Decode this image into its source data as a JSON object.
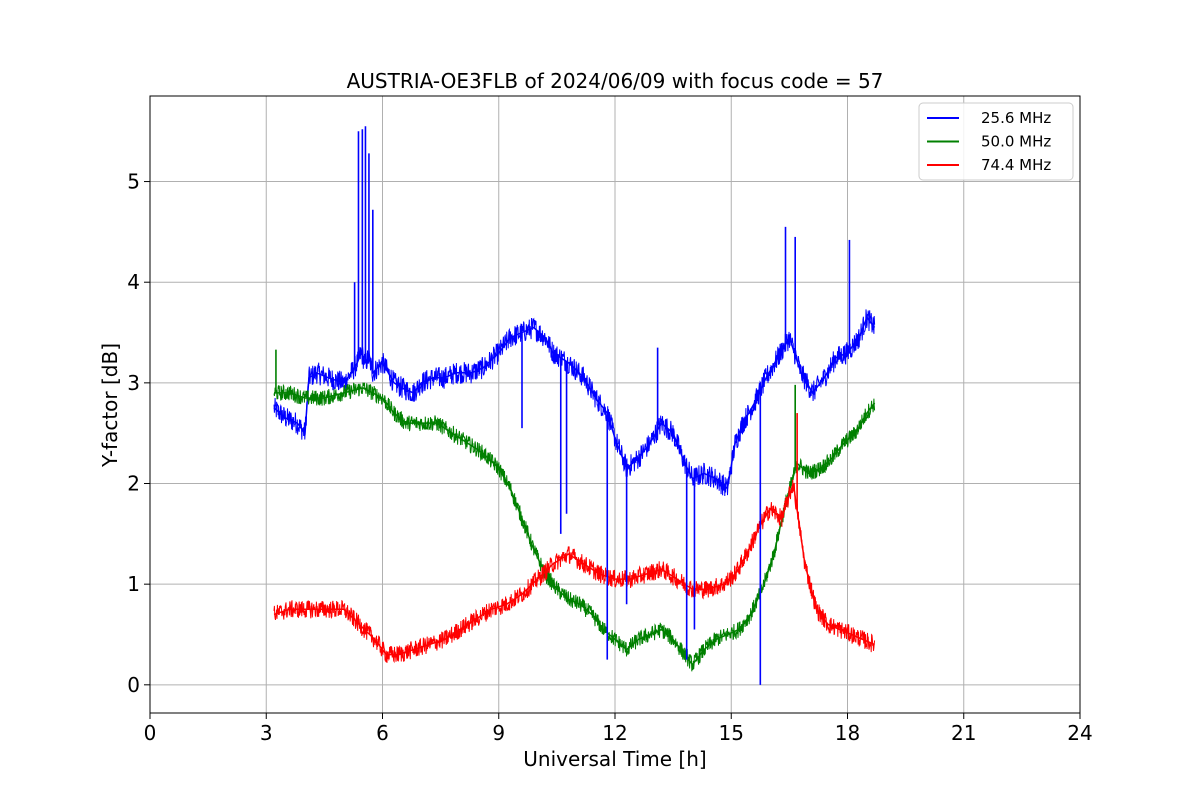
{
  "chart_data": {
    "type": "line",
    "title": "AUSTRIA-OE3FLB of 2024/06/09 with focus code = 57",
    "xlabel": "Universal Time [h]",
    "ylabel": "Y-factor [dB]",
    "xlim": [
      0,
      24
    ],
    "ylim": [
      -0.28,
      5.85
    ],
    "xticks": [
      0,
      3,
      6,
      9,
      12,
      15,
      18,
      21,
      24
    ],
    "xtick_labels": [
      "0",
      "3",
      "6",
      "9",
      "12",
      "15",
      "18",
      "21",
      "24"
    ],
    "yticks": [
      0,
      1,
      2,
      3,
      4,
      5
    ],
    "ytick_labels": [
      "0",
      "1",
      "2",
      "3",
      "4",
      "5"
    ],
    "grid": true,
    "legend_position": "top-right",
    "series": [
      {
        "name": "25.6 MHz",
        "color": "#0000ff",
        "x": [
          3.2,
          3.5,
          3.8,
          4.0,
          4.1,
          4.3,
          4.6,
          5.0,
          5.2,
          5.35,
          5.45,
          5.55,
          5.65,
          5.75,
          6.0,
          6.3,
          6.5,
          6.8,
          7.0,
          7.3,
          7.6,
          7.9,
          8.3,
          8.6,
          9.0,
          9.3,
          9.6,
          9.9,
          10.2,
          10.4,
          10.8,
          11.2,
          11.5,
          11.8,
          12.0,
          12.3,
          12.6,
          12.9,
          13.2,
          13.5,
          13.8,
          14.0,
          14.3,
          14.6,
          14.9,
          15.1,
          15.3,
          15.6,
          15.9,
          16.2,
          16.5,
          16.8,
          17.1,
          17.4,
          17.7,
          18.0,
          18.3,
          18.5,
          18.7
        ],
        "values": [
          2.75,
          2.65,
          2.6,
          2.5,
          3.05,
          3.1,
          3.05,
          3.0,
          3.1,
          3.2,
          3.3,
          3.2,
          3.25,
          3.1,
          3.2,
          3.0,
          2.95,
          2.9,
          3.0,
          3.05,
          3.05,
          3.1,
          3.1,
          3.15,
          3.3,
          3.45,
          3.5,
          3.55,
          3.45,
          3.3,
          3.2,
          3.05,
          2.85,
          2.7,
          2.45,
          2.15,
          2.25,
          2.4,
          2.6,
          2.5,
          2.2,
          2.05,
          2.1,
          2.05,
          1.95,
          2.4,
          2.6,
          2.8,
          3.05,
          3.25,
          3.45,
          3.1,
          2.9,
          3.05,
          3.25,
          3.3,
          3.45,
          3.65,
          3.55
        ]
      },
      {
        "name": "50.0 MHz",
        "color": "#008000",
        "x": [
          3.2,
          3.6,
          4.0,
          4.5,
          5.0,
          5.5,
          6.0,
          6.3,
          6.6,
          7.0,
          7.4,
          7.8,
          8.2,
          8.6,
          9.0,
          9.3,
          9.6,
          9.9,
          10.2,
          10.5,
          10.8,
          11.1,
          11.4,
          11.7,
          12.0,
          12.3,
          12.6,
          12.9,
          13.2,
          13.5,
          13.8,
          14.0,
          14.3,
          14.6,
          14.9,
          15.2,
          15.5,
          15.8,
          16.1,
          16.4,
          16.7,
          17.0,
          17.3,
          17.6,
          17.9,
          18.2,
          18.5,
          18.7
        ],
        "values": [
          2.9,
          2.9,
          2.85,
          2.85,
          2.9,
          2.95,
          2.85,
          2.7,
          2.6,
          2.6,
          2.6,
          2.5,
          2.4,
          2.3,
          2.15,
          1.95,
          1.65,
          1.35,
          1.1,
          0.95,
          0.85,
          0.8,
          0.7,
          0.55,
          0.45,
          0.35,
          0.45,
          0.5,
          0.55,
          0.45,
          0.3,
          0.2,
          0.35,
          0.45,
          0.5,
          0.55,
          0.7,
          0.95,
          1.3,
          1.8,
          2.2,
          2.1,
          2.15,
          2.25,
          2.4,
          2.5,
          2.7,
          2.8
        ]
      },
      {
        "name": "74.4 MHz",
        "color": "#ff0000",
        "x": [
          3.2,
          3.6,
          4.0,
          4.5,
          5.0,
          5.4,
          5.8,
          6.1,
          6.4,
          6.8,
          7.2,
          7.6,
          8.0,
          8.4,
          8.8,
          9.2,
          9.6,
          10.0,
          10.4,
          10.8,
          11.2,
          11.6,
          12.0,
          12.4,
          12.8,
          13.2,
          13.6,
          14.0,
          14.4,
          14.8,
          15.1,
          15.4,
          15.7,
          16.0,
          16.3,
          16.6,
          16.9,
          17.2,
          17.5,
          17.8,
          18.1,
          18.4,
          18.7
        ],
        "values": [
          0.7,
          0.75,
          0.75,
          0.75,
          0.75,
          0.6,
          0.45,
          0.3,
          0.3,
          0.35,
          0.4,
          0.45,
          0.55,
          0.65,
          0.75,
          0.8,
          0.9,
          1.05,
          1.2,
          1.3,
          1.2,
          1.1,
          1.05,
          1.05,
          1.1,
          1.15,
          1.05,
          0.95,
          0.95,
          1.0,
          1.1,
          1.3,
          1.55,
          1.75,
          1.65,
          2.0,
          1.2,
          0.75,
          0.6,
          0.55,
          0.5,
          0.45,
          0.4
        ]
      }
    ],
    "spikes": [
      {
        "series": 0,
        "x": 5.28,
        "top": 4.0
      },
      {
        "series": 0,
        "x": 5.38,
        "top": 5.5
      },
      {
        "series": 0,
        "x": 5.48,
        "top": 5.52
      },
      {
        "series": 0,
        "x": 5.56,
        "top": 5.55
      },
      {
        "series": 0,
        "x": 5.65,
        "top": 5.28
      },
      {
        "series": 0,
        "x": 5.75,
        "top": 4.72
      },
      {
        "series": 0,
        "x": 9.6,
        "bottom": 2.55
      },
      {
        "series": 0,
        "x": 10.6,
        "bottom": 1.5
      },
      {
        "series": 0,
        "x": 10.75,
        "bottom": 1.7
      },
      {
        "series": 0,
        "x": 11.8,
        "bottom": 0.25
      },
      {
        "series": 0,
        "x": 12.3,
        "bottom": 0.8
      },
      {
        "series": 0,
        "x": 13.1,
        "top": 3.35
      },
      {
        "series": 0,
        "x": 13.85,
        "bottom": 0.25
      },
      {
        "series": 0,
        "x": 14.05,
        "bottom": 0.55
      },
      {
        "series": 0,
        "x": 15.75,
        "bottom": 0.0
      },
      {
        "series": 0,
        "x": 16.4,
        "top": 4.55
      },
      {
        "series": 0,
        "x": 16.65,
        "top": 4.45
      },
      {
        "series": 0,
        "x": 18.05,
        "top": 4.42
      },
      {
        "series": 1,
        "x": 3.25,
        "top": 3.33
      },
      {
        "series": 1,
        "x": 16.65,
        "top": 2.98
      },
      {
        "series": 2,
        "x": 16.7,
        "top": 2.7
      }
    ]
  }
}
